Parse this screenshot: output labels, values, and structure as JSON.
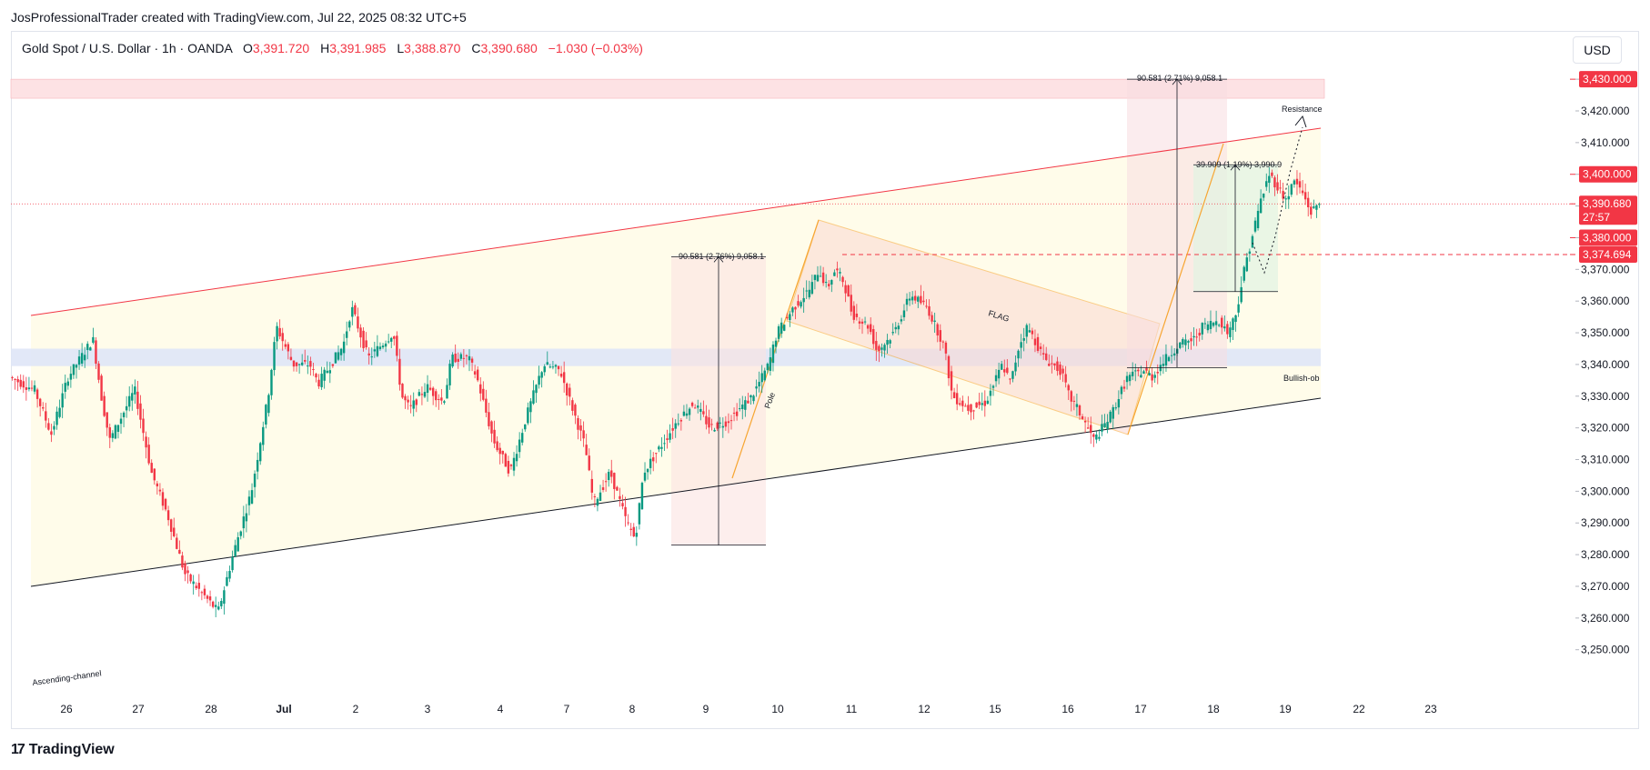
{
  "attribution": "JosProfessionalTrader created with TradingView.com, Jul 22, 2025 08:32 UTC+5",
  "legend": {
    "symbol": "Gold Spot / U.S. Dollar · 1h · OANDA",
    "open_label": "O",
    "open": "3,391.720",
    "high_label": "H",
    "high": "3,391.985",
    "low_label": "L",
    "low": "3,388.870",
    "close_label": "C",
    "close": "3,390.680",
    "change": "−1.030 (−0.03%)"
  },
  "currency": "USD",
  "footer": {
    "logo_text": "TradingView",
    "logo_mark": "17"
  },
  "colors": {
    "up": "#089981",
    "down": "#f23645",
    "resistance_fill": "#fde2e4",
    "ob_fill": "#dfe6f7",
    "channel_fill": "#fffbe6",
    "flag": "#f7a531"
  },
  "chart_data": {
    "type": "candlestick",
    "title": "Gold Spot / U.S. Dollar · 1h · OANDA",
    "ylim": [
      3240,
      3450
    ],
    "y_ticks": [
      3250,
      3260,
      3270,
      3280,
      3290,
      3300,
      3310,
      3320,
      3330,
      3340,
      3350,
      3360,
      3370,
      3380,
      3390,
      3400,
      3410,
      3420,
      3430
    ],
    "y_tick_labels": [
      "3,250.000",
      "3,260.000",
      "3,270.000",
      "3,280.000",
      "3,290.000",
      "3,300.000",
      "3,310.000",
      "3,320.000",
      "3,330.000",
      "3,340.000",
      "3,350.000",
      "3,360.000",
      "3,370.000",
      "3,380.000",
      "3,390.000",
      "3,400.000",
      "3,410.000",
      "3,420.000",
      "3,430.000"
    ],
    "x_labels": [
      "26",
      "27",
      "28",
      "Jul",
      "2",
      "3",
      "4",
      "7",
      "8",
      "9",
      "10",
      "11",
      "12",
      "15",
      "16",
      "17",
      "18",
      "19",
      "22",
      "23"
    ],
    "price_path": [
      [
        0,
        3336
      ],
      [
        3,
        3332
      ],
      [
        5,
        3318
      ],
      [
        7,
        3336
      ],
      [
        9,
        3344
      ],
      [
        10,
        3348
      ],
      [
        11,
        3330
      ],
      [
        12,
        3316
      ],
      [
        15,
        3332
      ],
      [
        17,
        3306
      ],
      [
        19,
        3292
      ],
      [
        21,
        3274
      ],
      [
        23,
        3268
      ],
      [
        25,
        3262
      ],
      [
        27,
        3282
      ],
      [
        29,
        3300
      ],
      [
        31,
        3330
      ],
      [
        32,
        3352
      ],
      [
        34,
        3340
      ],
      [
        36,
        3340
      ],
      [
        37,
        3334
      ],
      [
        40,
        3346
      ],
      [
        41,
        3358
      ],
      [
        43,
        3342
      ],
      [
        46,
        3350
      ],
      [
        47,
        3330
      ],
      [
        48,
        3326
      ],
      [
        50,
        3333
      ],
      [
        52,
        3328
      ],
      [
        53,
        3342
      ],
      [
        55,
        3342
      ],
      [
        56,
        3336
      ],
      [
        58,
        3316
      ],
      [
        60,
        3306
      ],
      [
        62,
        3324
      ],
      [
        64,
        3340
      ],
      [
        66,
        3338
      ],
      [
        67,
        3330
      ],
      [
        69,
        3314
      ],
      [
        70,
        3296
      ],
      [
        72,
        3306
      ],
      [
        74,
        3290
      ],
      [
        75,
        3285
      ],
      [
        76,
        3306
      ],
      [
        79,
        3318
      ],
      [
        80,
        3322
      ],
      [
        82,
        3328
      ],
      [
        84,
        3320
      ],
      [
        86,
        3322
      ],
      [
        89,
        3330
      ],
      [
        91,
        3340
      ],
      [
        92,
        3350
      ],
      [
        94,
        3358
      ],
      [
        96,
        3364
      ],
      [
        97,
        3370
      ],
      [
        98,
        3364
      ],
      [
        99,
        3370
      ],
      [
        100,
        3366
      ],
      [
        101,
        3356
      ],
      [
        103,
        3352
      ],
      [
        104,
        3344
      ],
      [
        106,
        3350
      ],
      [
        108,
        3362
      ],
      [
        110,
        3358
      ],
      [
        112,
        3346
      ],
      [
        113,
        3330
      ],
      [
        115,
        3326
      ],
      [
        117,
        3328
      ],
      [
        119,
        3340
      ],
      [
        120,
        3334
      ],
      [
        121,
        3346
      ],
      [
        122,
        3352
      ],
      [
        124,
        3342
      ],
      [
        126,
        3338
      ],
      [
        127,
        3330
      ],
      [
        128,
        3326
      ],
      [
        130,
        3316
      ],
      [
        132,
        3324
      ],
      [
        134,
        3336
      ],
      [
        136,
        3338
      ],
      [
        137,
        3336
      ],
      [
        138,
        3340
      ],
      [
        140,
        3346
      ],
      [
        142,
        3348
      ],
      [
        143,
        3352
      ],
      [
        145,
        3354
      ],
      [
        146,
        3350
      ],
      [
        147,
        3356
      ],
      [
        148,
        3370
      ],
      [
        150,
        3392
      ],
      [
        151,
        3400
      ],
      [
        152,
        3396
      ],
      [
        153,
        3392
      ],
      [
        154,
        3398
      ],
      [
        155,
        3394
      ],
      [
        156,
        3388
      ],
      [
        157,
        3391
      ]
    ],
    "last_price": 3390.68,
    "level_badges": [
      {
        "label": "3,430.000",
        "value": 3430
      },
      {
        "label": "3,400.000",
        "value": 3400
      },
      {
        "label": "3,390.680",
        "value": 3390.68,
        "sub": "27:57"
      },
      {
        "label": "3,380.000",
        "value": 3380
      },
      {
        "label": "3,374.694",
        "value": 3374.694
      }
    ],
    "annotations": [
      {
        "text": "90.581 (2.71%) 9,058.1"
      },
      {
        "text": "39.909 (1.19%) 3,990.9"
      },
      {
        "text": "90.581 (2.76%) 9,058.1"
      },
      {
        "text": "Resistance"
      },
      {
        "text": "Bullish-ob"
      },
      {
        "text": "FLAG"
      },
      {
        "text": "Pole"
      },
      {
        "text": "Ascending-channel"
      }
    ]
  }
}
